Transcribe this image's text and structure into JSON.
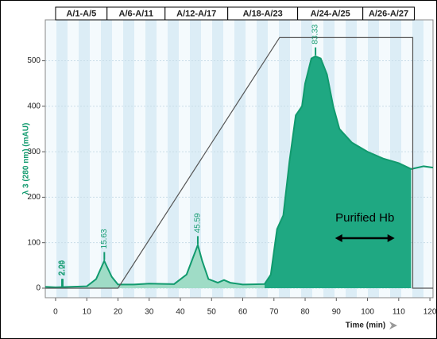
{
  "chart_data": {
    "type": "area",
    "y_label": "λ 3 (280 nm) (mAU)",
    "x_label": "Time (min)",
    "xlim": [
      -3.3,
      121
    ],
    "ylim": [
      -21,
      590
    ],
    "xticks": [
      0,
      10,
      20,
      30,
      40,
      50,
      60,
      70,
      80,
      90,
      100,
      110,
      120
    ],
    "yticks": [
      0,
      100,
      200,
      300,
      400,
      500
    ],
    "color": "#119a6e",
    "fractions": [
      {
        "label": "A/1-A/5",
        "start": 0,
        "end": 16.5
      },
      {
        "label": "A/6-A/11",
        "start": 16.5,
        "end": 35.1
      },
      {
        "label": "A/12-A/17",
        "start": 35.1,
        "end": 55.2
      },
      {
        "label": "A/18-A/23",
        "start": 55.2,
        "end": 77.6
      },
      {
        "label": "A/24-A/25",
        "start": 77.6,
        "end": 98.5
      },
      {
        "label": "A/26-A/27",
        "start": 98.5,
        "end": 115
      }
    ],
    "x": [
      -3.3,
      0,
      10,
      13,
      15.6,
      18,
      20,
      25,
      30,
      38,
      42,
      45.6,
      47,
      49,
      52,
      54,
      56,
      60,
      67,
      69,
      71,
      73,
      75,
      77,
      79,
      80,
      82,
      83.3,
      85,
      87,
      89,
      91,
      95,
      100,
      105,
      110,
      114,
      118,
      121
    ],
    "values": [
      3,
      2,
      4,
      20,
      60,
      25,
      8,
      8,
      10,
      9,
      30,
      95,
      60,
      20,
      12,
      18,
      12,
      8,
      9,
      30,
      130,
      160,
      280,
      380,
      400,
      450,
      505,
      510,
      505,
      470,
      400,
      350,
      320,
      300,
      285,
      275,
      262,
      268,
      265
    ],
    "gradient": {
      "x": [
        -3.3,
        20,
        71.8,
        114.5,
        114.5,
        121
      ],
      "values": [
        0,
        0,
        551,
        551,
        0,
        0
      ]
    },
    "peaks": [
      {
        "time": 2.29,
        "height": 3
      },
      {
        "time": 2.06,
        "height": 3
      },
      {
        "time": 15.63,
        "height": 62
      },
      {
        "time": 45.59,
        "height": 97
      },
      {
        "time": 83.33,
        "height": 512
      }
    ],
    "annotation": {
      "text": "Purified Hb",
      "start": 89.6,
      "end": 108.7,
      "value": 110
    }
  }
}
